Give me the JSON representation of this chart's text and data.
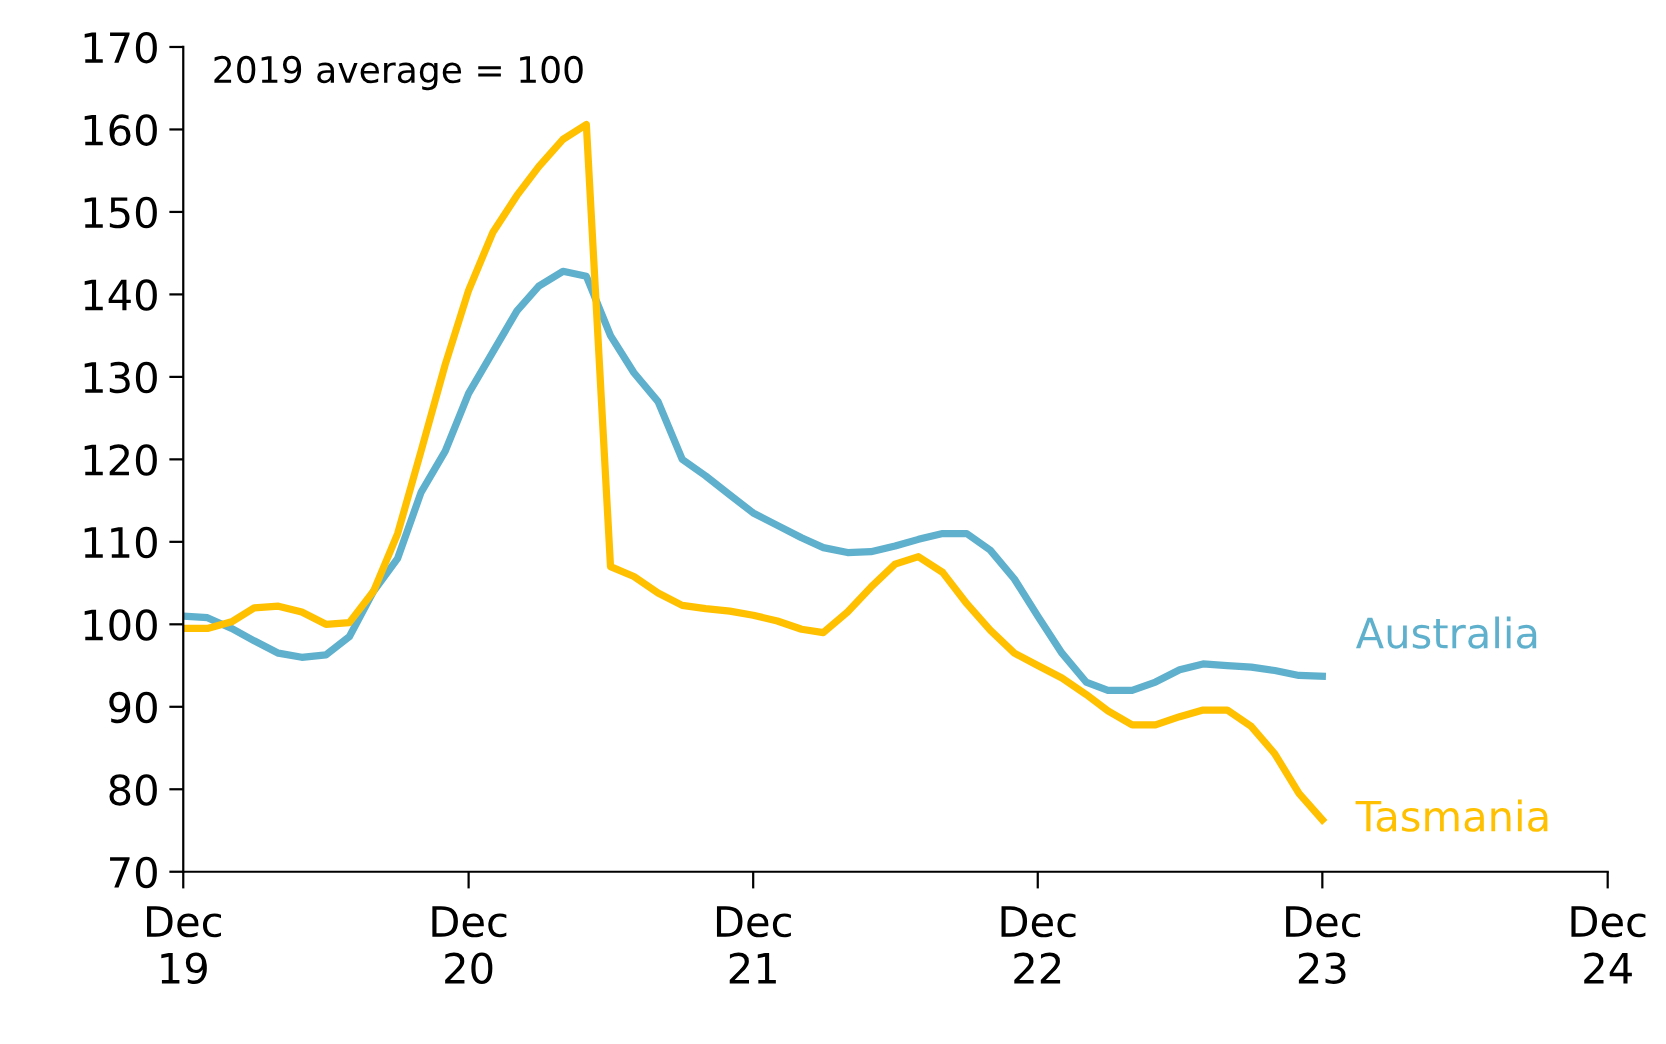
{
  "chart_data": {
    "type": "line",
    "x": [
      "2019-12",
      "2020-01",
      "2020-02",
      "2020-03",
      "2020-04",
      "2020-05",
      "2020-06",
      "2020-07",
      "2020-08",
      "2020-09",
      "2020-10",
      "2020-11",
      "2020-12",
      "2021-01",
      "2021-02",
      "2021-03",
      "2021-04",
      "2021-05",
      "2021-06",
      "2021-07",
      "2021-08",
      "2021-09",
      "2021-10",
      "2021-11",
      "2021-12",
      "2022-01",
      "2022-02",
      "2022-03",
      "2022-04",
      "2022-05",
      "2022-06",
      "2022-07",
      "2022-08",
      "2022-09",
      "2022-10",
      "2022-11",
      "2022-12",
      "2023-01",
      "2023-02",
      "2023-03",
      "2023-04",
      "2023-05",
      "2023-06",
      "2023-07",
      "2023-08",
      "2023-09",
      "2023-10",
      "2023-11",
      "2023-12"
    ],
    "series": [
      {
        "name": "Australia",
        "color": "#5fb0cc",
        "values": [
          101,
          100.8,
          99.5,
          98,
          96.5,
          96,
          96.3,
          98.5,
          104,
          108,
          116,
          121,
          128,
          133,
          138,
          141,
          142.8,
          142.2,
          135,
          130.5,
          127,
          120,
          118,
          115.7,
          113.5,
          112,
          110.5,
          109.3,
          108.7,
          108.8,
          109.5,
          110.3,
          111,
          111,
          109,
          105.5,
          101,
          96.5,
          93,
          92,
          92,
          93,
          94.5,
          95.2,
          95,
          94.8,
          94.4,
          93.8,
          93.7
        ]
      },
      {
        "name": "Tasmania",
        "color": "#ffc000",
        "values": [
          99.5,
          99.5,
          100.3,
          102,
          102.2,
          101.5,
          100,
          100.2,
          104,
          111,
          121,
          131.5,
          140.5,
          147.5,
          152,
          155.5,
          158.8,
          160.6,
          107,
          105.8,
          103.8,
          102.3,
          101.9,
          101.6,
          101.1,
          100.4,
          99.4,
          99,
          101.5,
          104.5,
          107.3,
          108.2,
          106.3,
          102.5,
          99.3,
          96.5,
          95,
          93.5,
          91.5,
          89.5,
          87.8,
          87.8,
          88.8,
          89.6,
          89.6,
          87.6,
          84.3,
          79.5,
          76.3
        ]
      }
    ],
    "annotations": [
      "2019 average = 100"
    ],
    "xlim": [
      "2019-12",
      "2024-12"
    ],
    "xticks": [
      {
        "value": "2019-12",
        "label": "Dec\n19"
      },
      {
        "value": "2020-12",
        "label": "Dec\n20"
      },
      {
        "value": "2021-12",
        "label": "Dec\n21"
      },
      {
        "value": "2022-12",
        "label": "Dec\n22"
      },
      {
        "value": "2023-12",
        "label": "Dec\n23"
      },
      {
        "value": "2024-12",
        "label": "Dec\n24"
      }
    ],
    "ylim": [
      70,
      170
    ],
    "yticks": [
      70,
      80,
      90,
      100,
      110,
      120,
      130,
      140,
      150,
      160,
      170
    ],
    "grid": false,
    "legend": false,
    "marker": "none",
    "line_style": "solid"
  }
}
